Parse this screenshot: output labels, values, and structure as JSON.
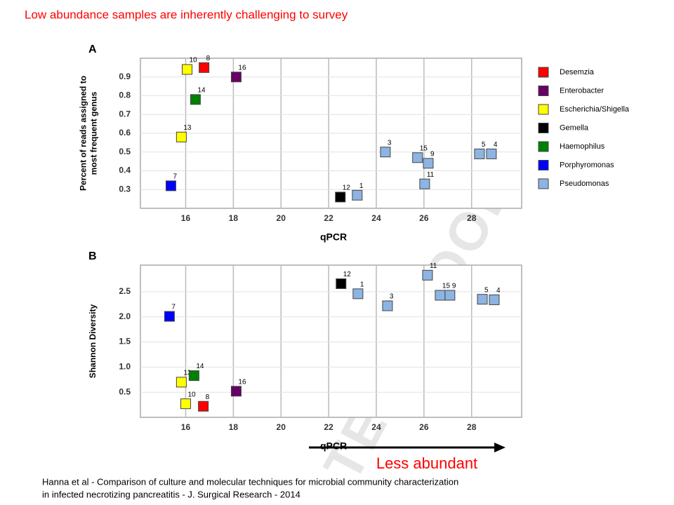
{
  "slide_title": "Low abundance samples are inherently challenging to survey",
  "arrow_label": "Less abundant",
  "watermark": "TED PROOF",
  "citation": [
    "Hanna et al - Comparison of culture and molecular techniques for microbial community characterization",
    "in infected necrotizing pancreatitis - J. Surgical Research - 2014"
  ],
  "chart_data": [
    {
      "type": "scatter",
      "panel": "A",
      "xlabel": "qPCR",
      "ylabel": [
        "Percent of reads assigned to",
        "most frequent genus"
      ],
      "xlim": [
        14.1,
        30.1
      ],
      "xticks": [
        16,
        18,
        20,
        22,
        24,
        26,
        28
      ],
      "ylim": [
        0.2,
        1.0
      ],
      "yticks": [
        0.3,
        0.4,
        0.5,
        0.6,
        0.7,
        0.8,
        0.9
      ],
      "grid": true,
      "legend": "right",
      "series": [
        {
          "name": "Desemzia",
          "color": "#ff0000",
          "x": [
            16.77
          ],
          "values": [
            0.95
          ],
          "labels": [
            8
          ]
        },
        {
          "name": "Enterobacter",
          "color": "#660066",
          "x": [
            18.12
          ],
          "values": [
            0.9
          ],
          "labels": [
            16
          ]
        },
        {
          "name": "Escherichia/Shigella",
          "color": "#ffff00",
          "x": [
            16.06,
            15.82
          ],
          "values": [
            0.94,
            0.58
          ],
          "labels": [
            10,
            13
          ]
        },
        {
          "name": "Gemella",
          "color": "#000000",
          "x": [
            22.49
          ],
          "values": [
            0.26
          ],
          "labels": [
            12
          ]
        },
        {
          "name": "Haemophilus",
          "color": "#008000",
          "x": [
            16.41
          ],
          "values": [
            0.78
          ],
          "labels": [
            14
          ]
        },
        {
          "name": "Porphyromonas",
          "color": "#0000ff",
          "x": [
            15.38
          ],
          "values": [
            0.32
          ],
          "labels": [
            7
          ]
        },
        {
          "name": "Pseudomonas",
          "color": "#8db4e2",
          "x": [
            23.2,
            24.38,
            25.73,
            26.18,
            26.03,
            28.33,
            28.83
          ],
          "values": [
            0.27,
            0.5,
            0.47,
            0.44,
            0.33,
            0.49,
            0.49
          ],
          "labels": [
            1,
            3,
            15,
            9,
            11,
            5,
            4
          ]
        }
      ]
    },
    {
      "type": "scatter",
      "panel": "B",
      "xlabel": "qPCR",
      "ylabel": [
        "Shannon Diversity"
      ],
      "xlim": [
        14.1,
        30.1
      ],
      "xticks": [
        16,
        18,
        20,
        22,
        24,
        26,
        28
      ],
      "ylim": [
        0,
        3.03
      ],
      "yticks": [
        0.5,
        {
          "value": 1.0,
          "label": "1.0"
        },
        1.5,
        {
          "value": 2.0,
          "label": "2.0"
        },
        2.5
      ],
      "grid": true,
      "series": [
        {
          "color": "#ff0000",
          "x": [
            16.74
          ],
          "values": [
            0.22
          ],
          "labels": [
            8
          ]
        },
        {
          "color": "#660066",
          "x": [
            18.12
          ],
          "values": [
            0.52
          ],
          "labels": [
            16
          ]
        },
        {
          "color": "#ffff00",
          "x": [
            16.0,
            15.82
          ],
          "values": [
            0.27,
            0.7
          ],
          "labels": [
            10,
            13
          ]
        },
        {
          "color": "#000000",
          "x": [
            22.52
          ],
          "values": [
            2.66
          ],
          "labels": [
            12
          ]
        },
        {
          "color": "#008000",
          "x": [
            16.35
          ],
          "values": [
            0.83
          ],
          "labels": [
            14
          ]
        },
        {
          "color": "#0000ff",
          "x": [
            15.32
          ],
          "values": [
            2.01
          ],
          "labels": [
            7
          ]
        },
        {
          "color": "#8db4e2",
          "x": [
            23.23,
            24.47,
            26.15,
            26.68,
            27.09,
            28.45,
            28.95
          ],
          "values": [
            2.46,
            2.22,
            2.83,
            2.43,
            2.43,
            2.35,
            2.34
          ],
          "labels": [
            1,
            3,
            11,
            15,
            9,
            5,
            4
          ]
        }
      ]
    }
  ]
}
